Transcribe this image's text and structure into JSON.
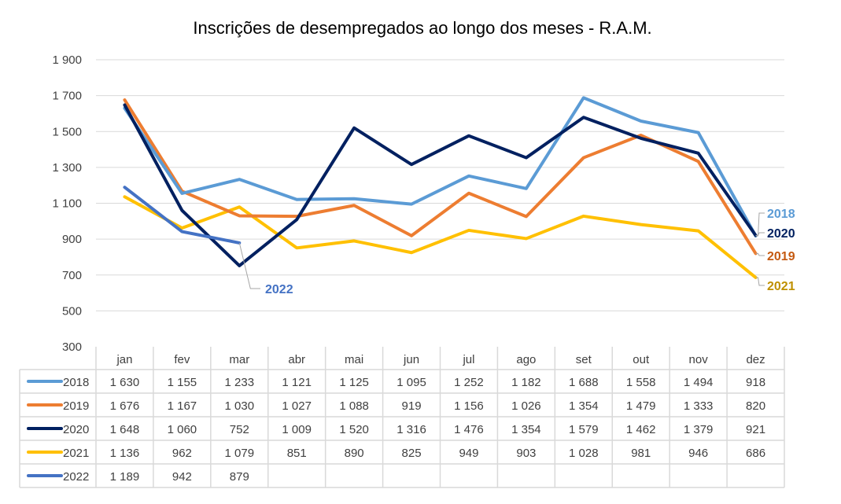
{
  "chart_data": {
    "type": "line",
    "title": "Inscrições de desempregados ao longo dos meses - R.A.M.",
    "xlabel": "",
    "ylabel": "",
    "ylim": [
      300,
      1900
    ],
    "yticks": [
      300,
      500,
      700,
      900,
      1100,
      1300,
      1500,
      1700,
      1900
    ],
    "ytick_labels": [
      "300",
      "500",
      "700",
      "900",
      "1 100",
      "1 300",
      "1 500",
      "1 700",
      "1 900"
    ],
    "grid": true,
    "legend": "data-table",
    "categories": [
      "jan",
      "fev",
      "mar",
      "abr",
      "mai",
      "jun",
      "jul",
      "ago",
      "set",
      "out",
      "nov",
      "dez"
    ],
    "series": [
      {
        "name": "2018",
        "color": "#5B9BD5",
        "label_color": "#5B9BD5",
        "values": [
          1630,
          1155,
          1233,
          1121,
          1125,
          1095,
          1252,
          1182,
          1688,
          1558,
          1494,
          918
        ],
        "cells": [
          "1 630",
          "1 155",
          "1 233",
          "1 121",
          "1 125",
          "1 095",
          "1 252",
          "1 182",
          "1 688",
          "1 558",
          "1 494",
          "918"
        ]
      },
      {
        "name": "2019",
        "color": "#ED7D31",
        "label_color": "#C55A11",
        "values": [
          1676,
          1167,
          1030,
          1027,
          1088,
          919,
          1156,
          1026,
          1354,
          1479,
          1333,
          820
        ],
        "cells": [
          "1 676",
          "1 167",
          "1 030",
          "1 027",
          "1 088",
          "919",
          "1 156",
          "1 026",
          "1 354",
          "1 479",
          "1 333",
          "820"
        ]
      },
      {
        "name": "2020",
        "color": "#002060",
        "label_color": "#002060",
        "values": [
          1648,
          1060,
          752,
          1009,
          1520,
          1316,
          1476,
          1354,
          1579,
          1462,
          1379,
          921
        ],
        "cells": [
          "1 648",
          "1 060",
          "752",
          "1 009",
          "1 520",
          "1 316",
          "1 476",
          "1 354",
          "1 579",
          "1 462",
          "1 379",
          "921"
        ]
      },
      {
        "name": "2021",
        "color": "#FFC000",
        "label_color": "#BF9000",
        "values": [
          1136,
          962,
          1079,
          851,
          890,
          825,
          949,
          903,
          1028,
          981,
          946,
          686
        ],
        "cells": [
          "1 136",
          "962",
          "1 079",
          "851",
          "890",
          "825",
          "949",
          "903",
          "1 028",
          "981",
          "946",
          "686"
        ]
      },
      {
        "name": "2022",
        "color": "#4472C4",
        "label_color": "#4472C4",
        "values": [
          1189,
          942,
          879,
          null,
          null,
          null,
          null,
          null,
          null,
          null,
          null,
          null
        ],
        "cells": [
          "1 189",
          "942",
          "879",
          "",
          "",
          "",
          "",
          "",
          "",
          "",
          "",
          ""
        ]
      }
    ]
  }
}
